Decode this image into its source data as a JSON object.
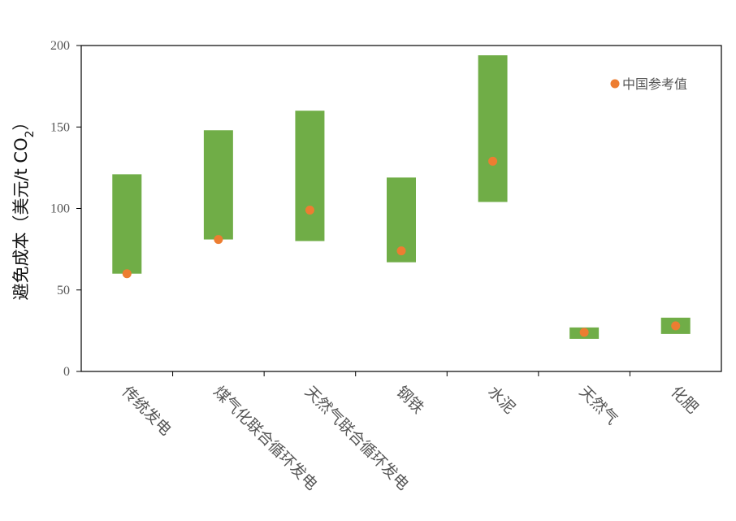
{
  "chart_data": {
    "type": "bar",
    "subtype": "floating-range-with-markers",
    "categories": [
      "传统发电",
      "煤气化联合循环发电",
      "天然气联合循环发电",
      "钢铁",
      "水泥",
      "天然气",
      "化肥"
    ],
    "ranges": [
      [
        60,
        121
      ],
      [
        81,
        148
      ],
      [
        80,
        160
      ],
      [
        67,
        119
      ],
      [
        104,
        194
      ],
      [
        20,
        27
      ],
      [
        23,
        33
      ]
    ],
    "series": [
      {
        "name": "中国参考值",
        "values": [
          60,
          81,
          99,
          74,
          129,
          24,
          28
        ]
      }
    ],
    "ylabel": {
      "main": "避免成本（美元/t CO",
      "subscript": "2",
      "close": "）"
    },
    "ylim": [
      0,
      200
    ],
    "yticks": [
      "0",
      "50",
      "100",
      "150",
      "200"
    ],
    "legend_position": "top-right",
    "grid": false,
    "colors": {
      "range": "#70ad47",
      "marker": "#ed7d31",
      "axis": "#000000"
    }
  }
}
